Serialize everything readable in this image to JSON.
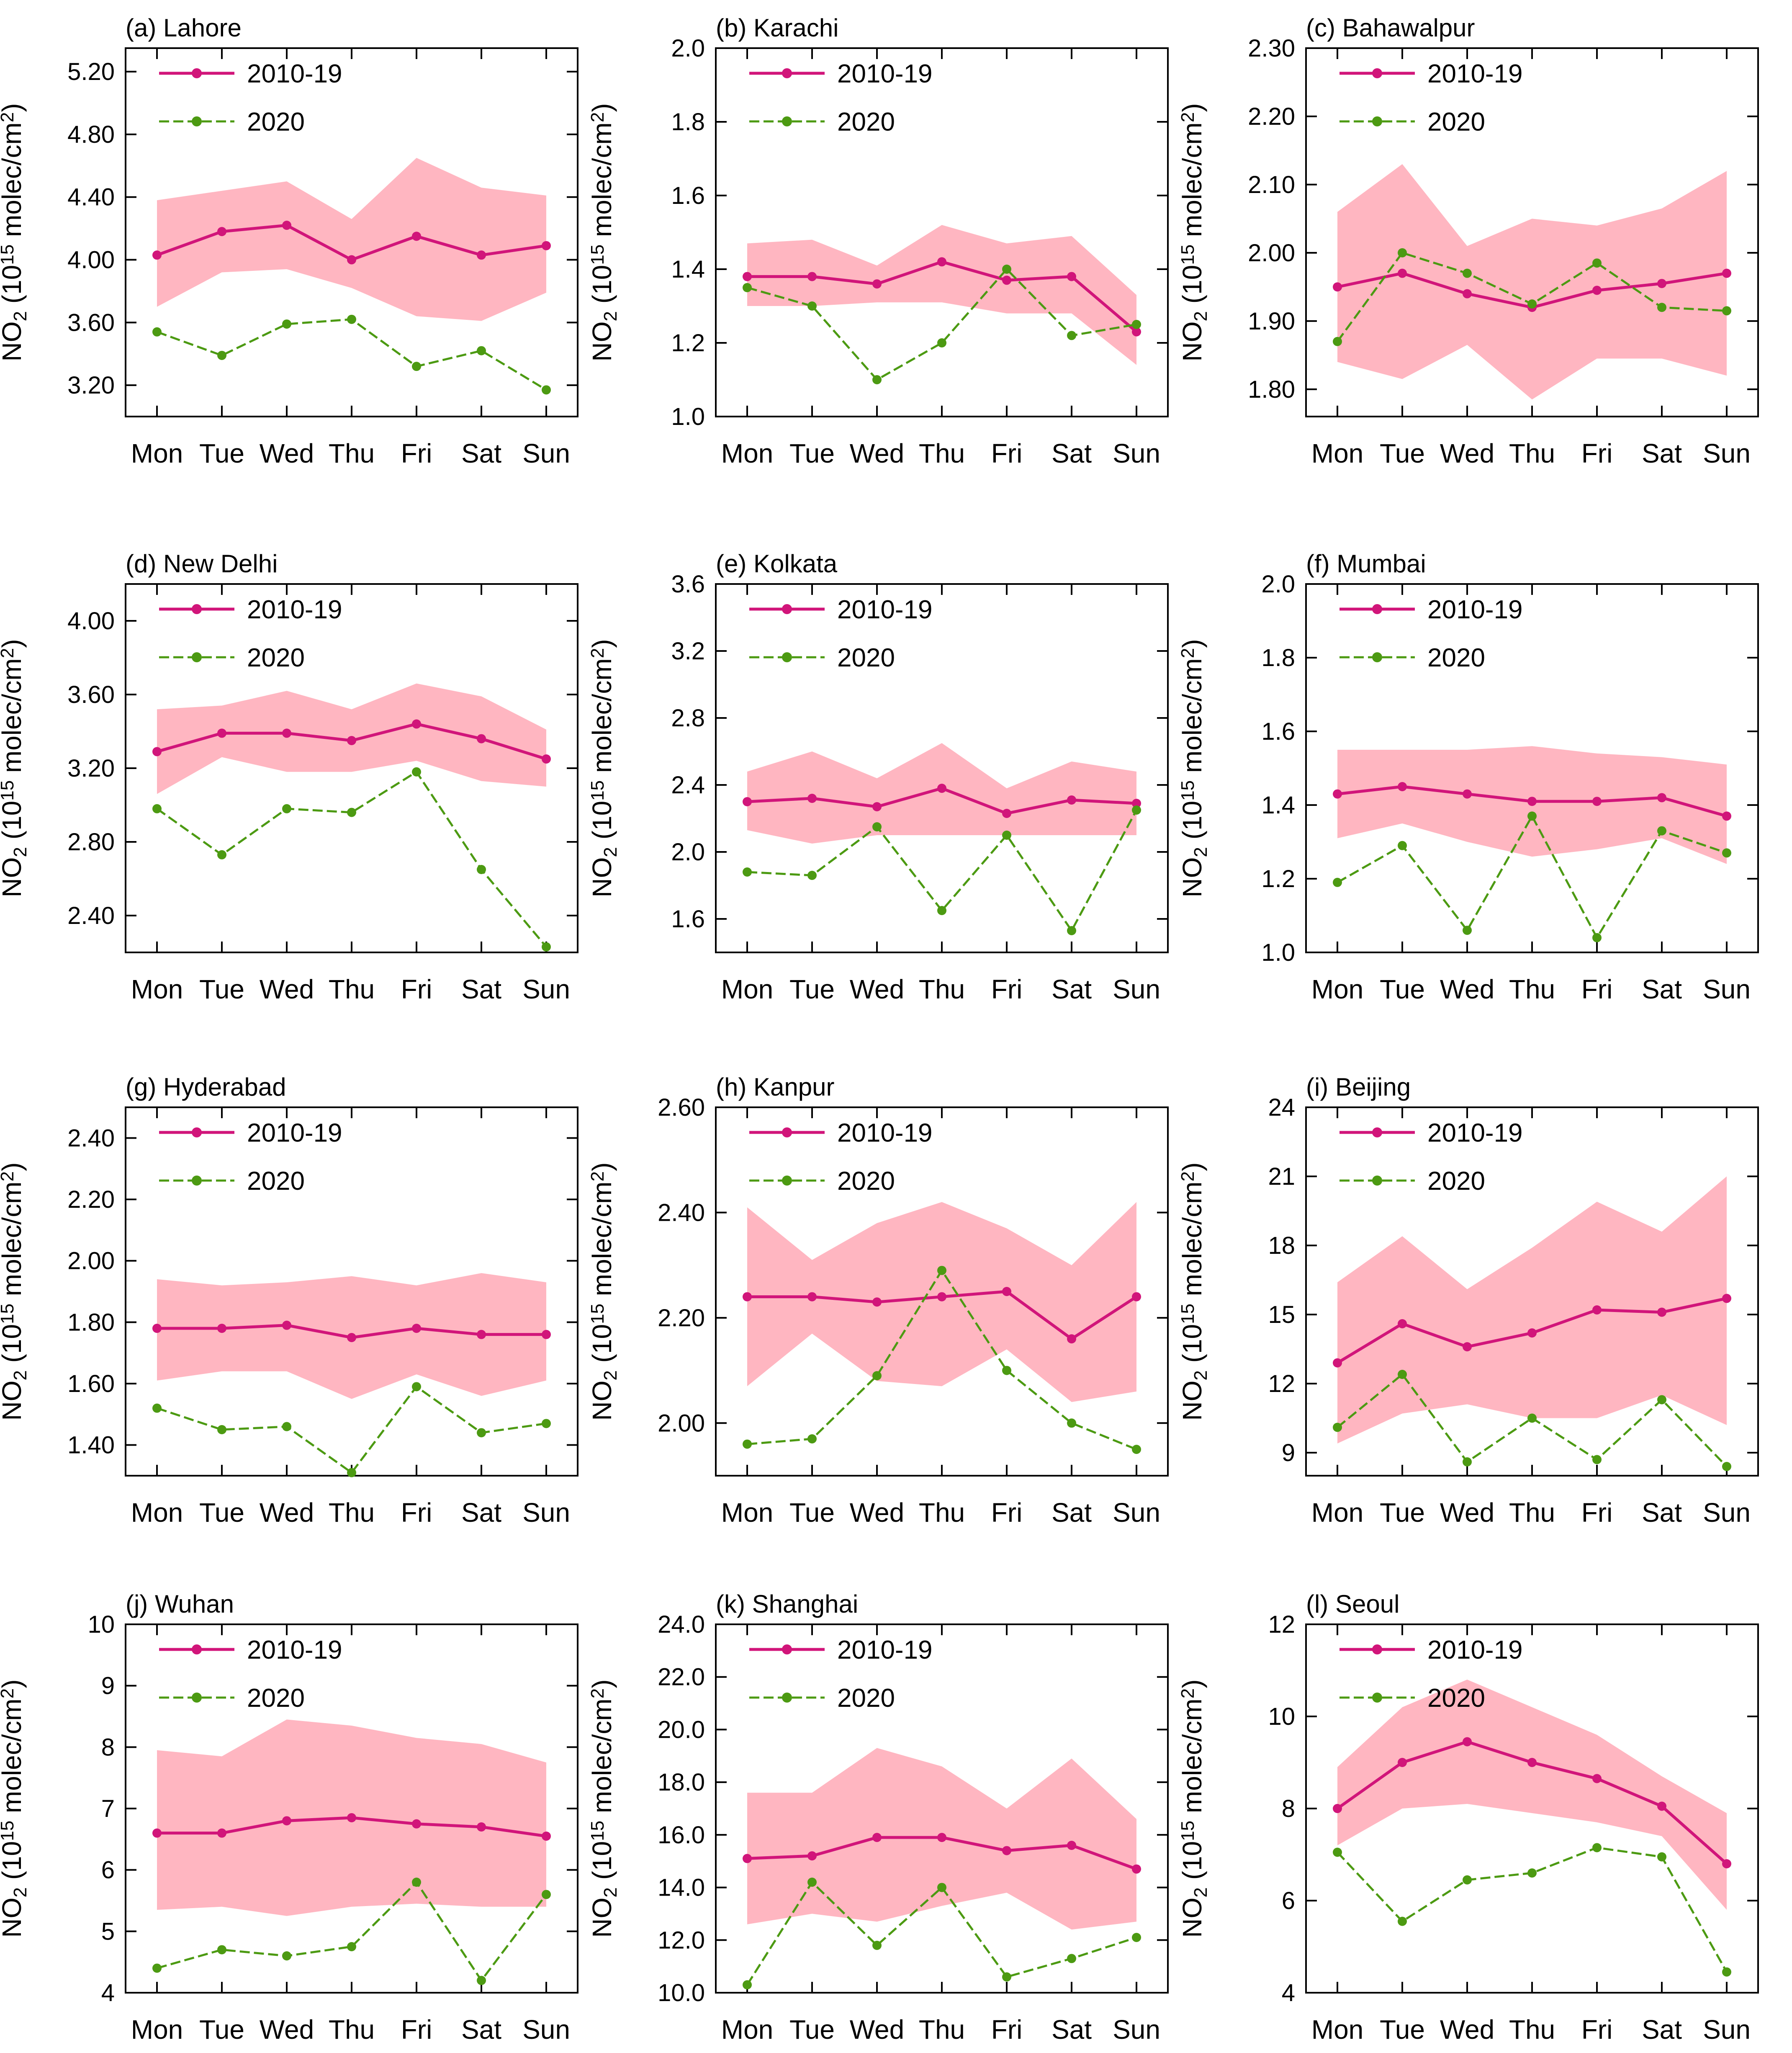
{
  "figure": {
    "days": [
      "Mon",
      "Tue",
      "Wed",
      "Thu",
      "Fri",
      "Sat",
      "Sun"
    ],
    "ylabel": {
      "base": "NO",
      "sub": "2",
      "open": " (10",
      "sup": "15",
      "mid": " molec/cm",
      "sup2": "2",
      "close": ")"
    },
    "legend": [
      "2010-19",
      "2020"
    ],
    "colors": {
      "baseline": "#D1157A",
      "current": "#4C9A12",
      "band": "#FFB6C1",
      "axis": "#000000"
    }
  },
  "chart_data": [
    {
      "type": "line",
      "title": "(a) Lahore",
      "ylim": [
        3.0,
        5.35
      ],
      "yticks": [
        "3.20",
        "3.60",
        "4.00",
        "4.40",
        "4.80",
        "5.20"
      ],
      "categories": [
        "Mon",
        "Tue",
        "Wed",
        "Thu",
        "Fri",
        "Sat",
        "Sun"
      ],
      "series": [
        {
          "name": "2010-19",
          "values": [
            4.03,
            4.18,
            4.22,
            4.0,
            4.15,
            4.03,
            4.09
          ]
        },
        {
          "name": "2020",
          "values": [
            3.54,
            3.39,
            3.59,
            3.62,
            3.32,
            3.42,
            3.17
          ]
        }
      ],
      "band": {
        "upper": [
          4.38,
          4.44,
          4.5,
          4.26,
          4.65,
          4.46,
          4.41
        ],
        "lower": [
          3.7,
          3.92,
          3.94,
          3.82,
          3.64,
          3.61,
          3.79
        ]
      }
    },
    {
      "type": "line",
      "title": "(b) Karachi",
      "ylim": [
        1.0,
        2.0
      ],
      "yticks": [
        "1.0",
        "1.2",
        "1.4",
        "1.6",
        "1.8",
        "2.0"
      ],
      "categories": [
        "Mon",
        "Tue",
        "Wed",
        "Thu",
        "Fri",
        "Sat",
        "Sun"
      ],
      "series": [
        {
          "name": "2010-19",
          "values": [
            1.38,
            1.38,
            1.36,
            1.42,
            1.37,
            1.38,
            1.23
          ]
        },
        {
          "name": "2020",
          "values": [
            1.35,
            1.3,
            1.1,
            1.2,
            1.4,
            1.22,
            1.25
          ]
        }
      ],
      "band": {
        "upper": [
          1.47,
          1.48,
          1.41,
          1.52,
          1.47,
          1.49,
          1.33
        ],
        "lower": [
          1.3,
          1.3,
          1.31,
          1.31,
          1.28,
          1.28,
          1.14
        ]
      }
    },
    {
      "type": "line",
      "title": "(c) Bahawalpur",
      "ylim": [
        1.76,
        2.3
      ],
      "yticks": [
        "1.80",
        "1.90",
        "2.00",
        "2.10",
        "2.20",
        "2.30"
      ],
      "categories": [
        "Mon",
        "Tue",
        "Wed",
        "Thu",
        "Fri",
        "Sat",
        "Sun"
      ],
      "series": [
        {
          "name": "2010-19",
          "values": [
            1.95,
            1.97,
            1.94,
            1.92,
            1.945,
            1.955,
            1.97
          ]
        },
        {
          "name": "2020",
          "values": [
            1.87,
            2.0,
            1.97,
            1.925,
            1.985,
            1.92,
            1.915
          ]
        }
      ],
      "band": {
        "upper": [
          2.06,
          2.13,
          2.01,
          2.05,
          2.04,
          2.065,
          2.12
        ],
        "lower": [
          1.84,
          1.815,
          1.865,
          1.785,
          1.845,
          1.845,
          1.82
        ]
      }
    },
    {
      "type": "line",
      "title": "(d) New Delhi",
      "ylim": [
        2.2,
        4.2
      ],
      "yticks": [
        "2.40",
        "2.80",
        "3.20",
        "3.60",
        "4.00"
      ],
      "categories": [
        "Mon",
        "Tue",
        "Wed",
        "Thu",
        "Fri",
        "Sat",
        "Sun"
      ],
      "series": [
        {
          "name": "2010-19",
          "values": [
            3.29,
            3.39,
            3.39,
            3.35,
            3.44,
            3.36,
            3.25
          ]
        },
        {
          "name": "2020",
          "values": [
            2.98,
            2.73,
            2.98,
            2.96,
            3.18,
            2.65,
            2.23
          ]
        }
      ],
      "band": {
        "upper": [
          3.52,
          3.54,
          3.62,
          3.52,
          3.66,
          3.59,
          3.41
        ],
        "lower": [
          3.06,
          3.26,
          3.18,
          3.18,
          3.24,
          3.13,
          3.1
        ]
      }
    },
    {
      "type": "line",
      "title": "(e) Kolkata",
      "ylim": [
        1.4,
        3.6
      ],
      "yticks": [
        "1.6",
        "2.0",
        "2.4",
        "2.8",
        "3.2",
        "3.6"
      ],
      "categories": [
        "Mon",
        "Tue",
        "Wed",
        "Thu",
        "Fri",
        "Sat",
        "Sun"
      ],
      "series": [
        {
          "name": "2010-19",
          "values": [
            2.3,
            2.32,
            2.27,
            2.38,
            2.23,
            2.31,
            2.29
          ]
        },
        {
          "name": "2020",
          "values": [
            1.88,
            1.86,
            2.15,
            1.65,
            2.1,
            1.53,
            2.25
          ]
        }
      ],
      "band": {
        "upper": [
          2.48,
          2.6,
          2.44,
          2.65,
          2.38,
          2.54,
          2.48
        ],
        "lower": [
          2.13,
          2.05,
          2.1,
          2.1,
          2.1,
          2.1,
          2.1
        ]
      }
    },
    {
      "type": "line",
      "title": "(f) Mumbai",
      "ylim": [
        1.0,
        2.0
      ],
      "yticks": [
        "1.0",
        "1.2",
        "1.4",
        "1.6",
        "1.8",
        "2.0"
      ],
      "categories": [
        "Mon",
        "Tue",
        "Wed",
        "Thu",
        "Fri",
        "Sat",
        "Sun"
      ],
      "series": [
        {
          "name": "2010-19",
          "values": [
            1.43,
            1.45,
            1.43,
            1.41,
            1.41,
            1.42,
            1.37
          ]
        },
        {
          "name": "2020",
          "values": [
            1.19,
            1.29,
            1.06,
            1.37,
            1.04,
            1.33,
            1.27
          ]
        }
      ],
      "band": {
        "upper": [
          1.55,
          1.55,
          1.55,
          1.56,
          1.54,
          1.53,
          1.51
        ],
        "lower": [
          1.31,
          1.35,
          1.3,
          1.26,
          1.28,
          1.31,
          1.24
        ]
      }
    },
    {
      "type": "line",
      "title": "(g) Hyderabad",
      "ylim": [
        1.3,
        2.5
      ],
      "yticks": [
        "1.40",
        "1.60",
        "1.80",
        "2.00",
        "2.20",
        "2.40"
      ],
      "categories": [
        "Mon",
        "Tue",
        "Wed",
        "Thu",
        "Fri",
        "Sat",
        "Sun"
      ],
      "series": [
        {
          "name": "2010-19",
          "values": [
            1.78,
            1.78,
            1.79,
            1.75,
            1.78,
            1.76,
            1.76
          ]
        },
        {
          "name": "2020",
          "values": [
            1.52,
            1.45,
            1.46,
            1.31,
            1.59,
            1.44,
            1.47
          ]
        }
      ],
      "band": {
        "upper": [
          1.94,
          1.92,
          1.93,
          1.95,
          1.92,
          1.96,
          1.93
        ],
        "lower": [
          1.61,
          1.64,
          1.64,
          1.55,
          1.63,
          1.56,
          1.61
        ]
      }
    },
    {
      "type": "line",
      "title": "(h) Kanpur",
      "ylim": [
        1.9,
        2.6
      ],
      "yticks": [
        "2.00",
        "2.20",
        "2.40",
        "2.60"
      ],
      "categories": [
        "Mon",
        "Tue",
        "Wed",
        "Thu",
        "Fri",
        "Sat",
        "Sun"
      ],
      "series": [
        {
          "name": "2010-19",
          "values": [
            2.24,
            2.24,
            2.23,
            2.24,
            2.25,
            2.16,
            2.24
          ]
        },
        {
          "name": "2020",
          "values": [
            1.96,
            1.97,
            2.09,
            2.29,
            2.1,
            2.0,
            1.95
          ]
        }
      ],
      "band": {
        "upper": [
          2.41,
          2.31,
          2.38,
          2.42,
          2.37,
          2.3,
          2.42
        ],
        "lower": [
          2.07,
          2.17,
          2.08,
          2.07,
          2.14,
          2.04,
          2.06
        ]
      }
    },
    {
      "type": "line",
      "title": "(i) Beijing",
      "ylim": [
        8,
        24
      ],
      "yticks": [
        "9",
        "12",
        "15",
        "18",
        "21",
        "24"
      ],
      "categories": [
        "Mon",
        "Tue",
        "Wed",
        "Thu",
        "Fri",
        "Sat",
        "Sun"
      ],
      "series": [
        {
          "name": "2010-19",
          "values": [
            12.9,
            14.6,
            13.6,
            14.2,
            15.2,
            15.1,
            15.7
          ]
        },
        {
          "name": "2020",
          "values": [
            10.1,
            12.4,
            8.6,
            10.5,
            8.7,
            11.3,
            8.4
          ]
        }
      ],
      "band": {
        "upper": [
          16.4,
          18.4,
          16.1,
          17.9,
          19.9,
          18.6,
          21.0
        ],
        "lower": [
          9.4,
          10.7,
          11.1,
          10.5,
          10.5,
          11.5,
          10.2
        ]
      }
    },
    {
      "type": "line",
      "title": "(j) Wuhan",
      "ylim": [
        4,
        10
      ],
      "yticks": [
        "4",
        "5",
        "6",
        "7",
        "8",
        "9",
        "10"
      ],
      "categories": [
        "Mon",
        "Tue",
        "Wed",
        "Thu",
        "Fri",
        "Sat",
        "Sun"
      ],
      "series": [
        {
          "name": "2010-19",
          "values": [
            6.6,
            6.6,
            6.8,
            6.85,
            6.75,
            6.7,
            6.55
          ]
        },
        {
          "name": "2020",
          "values": [
            4.4,
            4.7,
            4.6,
            4.75,
            5.8,
            4.2,
            5.6
          ]
        }
      ],
      "band": {
        "upper": [
          7.95,
          7.85,
          8.45,
          8.35,
          8.15,
          8.05,
          7.75
        ],
        "lower": [
          5.35,
          5.4,
          5.25,
          5.4,
          5.45,
          5.4,
          5.4
        ]
      }
    },
    {
      "type": "line",
      "title": "(k) Shanghai",
      "ylim": [
        10.0,
        24.0
      ],
      "yticks": [
        "10.0",
        "12.0",
        "14.0",
        "16.0",
        "18.0",
        "20.0",
        "22.0",
        "24.0"
      ],
      "categories": [
        "Mon",
        "Tue",
        "Wed",
        "Thu",
        "Fri",
        "Sat",
        "Sun"
      ],
      "series": [
        {
          "name": "2010-19",
          "values": [
            15.1,
            15.2,
            15.9,
            15.9,
            15.4,
            15.6,
            14.7
          ]
        },
        {
          "name": "2020",
          "values": [
            10.3,
            14.2,
            11.8,
            14.0,
            10.6,
            11.3,
            12.1
          ]
        }
      ],
      "band": {
        "upper": [
          17.6,
          17.6,
          19.3,
          18.6,
          17.0,
          18.9,
          16.6
        ],
        "lower": [
          12.6,
          13.0,
          12.7,
          13.3,
          13.8,
          12.4,
          12.7
        ]
      }
    },
    {
      "type": "line",
      "title": "(l) Seoul",
      "ylim": [
        4,
        12
      ],
      "yticks": [
        "4",
        "6",
        "8",
        "10",
        "12"
      ],
      "categories": [
        "Mon",
        "Tue",
        "Wed",
        "Thu",
        "Fri",
        "Sat",
        "Sun"
      ],
      "series": [
        {
          "name": "2010-19",
          "values": [
            8.0,
            9.0,
            9.45,
            9.0,
            8.65,
            8.05,
            6.8
          ]
        },
        {
          "name": "2020",
          "values": [
            7.05,
            5.55,
            6.45,
            6.6,
            7.15,
            6.95,
            4.45
          ]
        }
      ],
      "band": {
        "upper": [
          8.9,
          10.2,
          10.8,
          10.2,
          9.6,
          8.7,
          7.9
        ],
        "lower": [
          7.2,
          8.0,
          8.1,
          7.9,
          7.7,
          7.4,
          5.8
        ]
      }
    }
  ]
}
